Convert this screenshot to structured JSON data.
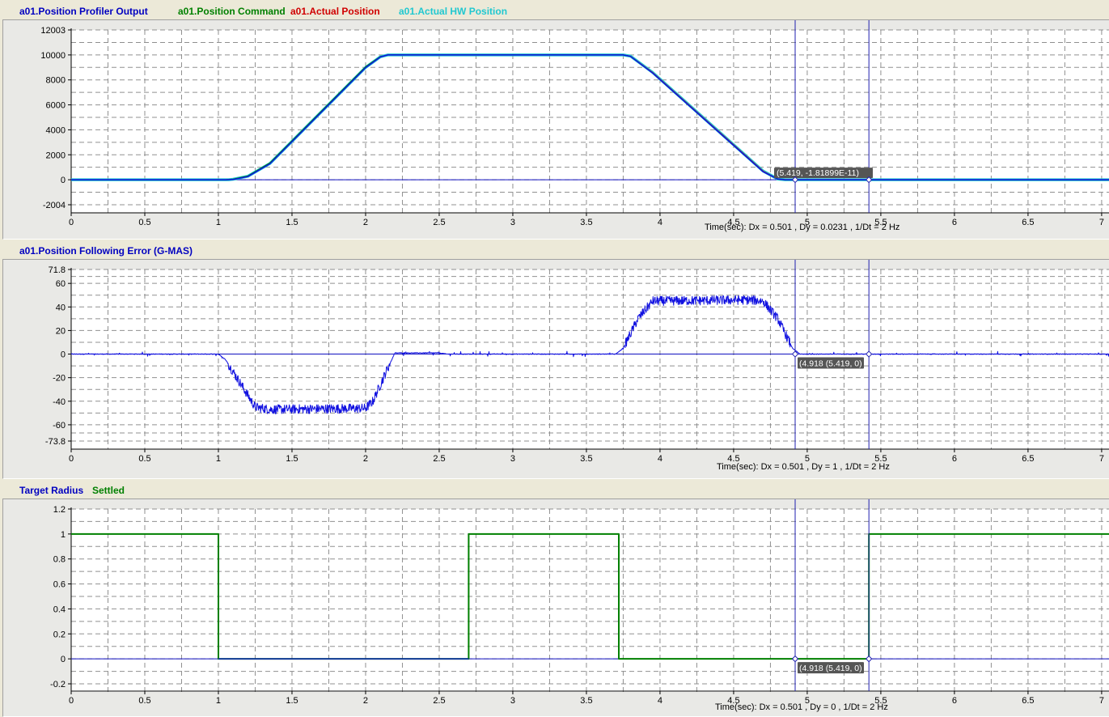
{
  "panels": [
    {
      "legend": [
        {
          "label": "a01.Position Profiler Output",
          "color": "#0000c0"
        },
        {
          "label": "a01.Position Command",
          "color": "#008000"
        },
        {
          "label": "a01.Actual Position",
          "color": "#d00000"
        },
        {
          "label": "a01.Actual HW Position",
          "color": "#20c8d0"
        }
      ],
      "info": "Time(sec): Dx = 0.501 , Dy = 0.0231 , 1/Dt = 2 Hz",
      "cursor_label": "(5.419, -1.81899E-11)",
      "cursor_label_extra": ""
    },
    {
      "legend": [
        {
          "label": "a01.Position Following Error (G-MAS)",
          "color": "#0000c0"
        }
      ],
      "info": "Time(sec): Dx = 0.501 , Dy = 1 , 1/Dt = 2 Hz",
      "cursor_label": "(4.918",
      "cursor_label_extra": "(5.419, 0)"
    },
    {
      "legend": [
        {
          "label": "Target Radius",
          "color": "#0000c0"
        },
        {
          "label": "Settled",
          "color": "#008000"
        }
      ],
      "info": "Time(sec): Dx = 0.501 , Dy = 0 , 1/Dt = 2 Hz",
      "cursor_label": "(4.918",
      "cursor_label_extra": "(5.419, 0)"
    }
  ],
  "chart_data": [
    {
      "type": "line",
      "title": "a01.Position Profiler Output",
      "xlabel": "Time(sec)",
      "ylabel": "",
      "xlim": [
        0,
        7.05
      ],
      "ylim": [
        -2004,
        12003
      ],
      "x_ticks": [
        "0",
        "0.5",
        "1",
        "1.5",
        "2",
        "2.5",
        "3",
        "3.5",
        "4",
        "4.5",
        "5",
        "5.5",
        "6",
        "6.5",
        "7"
      ],
      "y_ticks": [
        "12003",
        "10000",
        "8000",
        "6000",
        "4000",
        "2000",
        "0",
        "-2004"
      ],
      "y_tick_values": [
        12003,
        10000,
        8000,
        6000,
        4000,
        2000,
        0,
        -2004
      ],
      "cursors": [
        4.918,
        5.419
      ],
      "grid": true,
      "legend_position": "top-left",
      "series": [
        {
          "name": "a01.Actual HW Position",
          "color": "#20c8d0",
          "width": 3.5,
          "points": [
            [
              0,
              0
            ],
            [
              1.07,
              0
            ],
            [
              1.1,
              40
            ],
            [
              1.2,
              280
            ],
            [
              1.35,
              1300
            ],
            [
              2.0,
              9000
            ],
            [
              2.1,
              9850
            ],
            [
              2.15,
              10000
            ],
            [
              3.75,
              10000
            ],
            [
              3.8,
              9900
            ],
            [
              3.95,
              8600
            ],
            [
              4.7,
              700
            ],
            [
              4.8,
              60
            ],
            [
              4.85,
              0
            ],
            [
              7.05,
              0
            ]
          ]
        },
        {
          "name": "a01.Actual Position",
          "color": "#d00000",
          "width": 1,
          "points": [
            [
              0,
              0
            ],
            [
              1.06,
              0
            ],
            [
              1.1,
              40
            ],
            [
              1.2,
              280
            ],
            [
              1.35,
              1300
            ],
            [
              2.0,
              9000
            ],
            [
              2.1,
              9850
            ],
            [
              2.15,
              10000
            ],
            [
              3.75,
              10000
            ],
            [
              3.8,
              9900
            ],
            [
              3.95,
              8600
            ],
            [
              4.7,
              700
            ],
            [
              4.8,
              60
            ],
            [
              4.85,
              0
            ],
            [
              7.05,
              0
            ]
          ]
        },
        {
          "name": "a01.Position Command",
          "color": "#008000",
          "width": 1.2,
          "points": [
            [
              0,
              0
            ],
            [
              1.05,
              0
            ],
            [
              1.1,
              50
            ],
            [
              1.2,
              300
            ],
            [
              1.35,
              1350
            ],
            [
              2.0,
              9050
            ],
            [
              2.1,
              9870
            ],
            [
              2.15,
              10000
            ],
            [
              3.75,
              10000
            ],
            [
              3.8,
              9880
            ],
            [
              3.95,
              8550
            ],
            [
              4.7,
              650
            ],
            [
              4.8,
              50
            ],
            [
              4.85,
              0
            ],
            [
              7.05,
              0
            ]
          ]
        },
        {
          "name": "a01.Position Profiler Output",
          "color": "#1010e0",
          "width": 1.5,
          "points": [
            [
              0,
              0
            ],
            [
              1.05,
              0
            ],
            [
              1.1,
              20
            ],
            [
              1.2,
              250
            ],
            [
              1.35,
              1280
            ],
            [
              2.0,
              8980
            ],
            [
              2.1,
              9840
            ],
            [
              2.15,
              10000
            ],
            [
              3.75,
              10000
            ],
            [
              3.8,
              9880
            ],
            [
              3.95,
              8550
            ],
            [
              4.7,
              650
            ],
            [
              4.8,
              50
            ],
            [
              4.85,
              0
            ],
            [
              7.05,
              0
            ]
          ]
        }
      ]
    },
    {
      "type": "line",
      "title": "a01.Position Following Error (G-MAS)",
      "xlabel": "Time(sec)",
      "ylabel": "",
      "xlim": [
        0,
        7.05
      ],
      "ylim": [
        -73.8,
        71.8
      ],
      "x_ticks": [
        "0",
        "0.5",
        "1",
        "1.5",
        "2",
        "2.5",
        "3",
        "3.5",
        "4",
        "4.5",
        "5",
        "5.5",
        "6",
        "6.5",
        "7"
      ],
      "y_ticks": [
        "71.8",
        "60",
        "40",
        "20",
        "0",
        "-20",
        "-40",
        "-60",
        "-73.8"
      ],
      "y_tick_values": [
        71.8,
        60,
        40,
        20,
        0,
        -20,
        -40,
        -60,
        -73.8
      ],
      "cursors": [
        4.918,
        5.419
      ],
      "grid": true,
      "legend_position": "top-left",
      "noise_amplitude": 4,
      "series": [
        {
          "name": "a01.Position Following Error (G-MAS)",
          "color": "#1010e0",
          "width": 1,
          "points": [
            [
              0,
              0
            ],
            [
              1.0,
              0
            ],
            [
              1.05,
              -5
            ],
            [
              1.15,
              -25
            ],
            [
              1.25,
              -45
            ],
            [
              1.35,
              -47
            ],
            [
              2.0,
              -46
            ],
            [
              2.05,
              -40
            ],
            [
              2.15,
              -12
            ],
            [
              2.2,
              1
            ],
            [
              2.5,
              1
            ],
            [
              2.55,
              0
            ],
            [
              3.7,
              0
            ],
            [
              3.75,
              5
            ],
            [
              3.85,
              30
            ],
            [
              3.95,
              45
            ],
            [
              4.6,
              46
            ],
            [
              4.7,
              45
            ],
            [
              4.8,
              30
            ],
            [
              4.9,
              5
            ],
            [
              4.95,
              0
            ],
            [
              7.05,
              0
            ]
          ]
        }
      ]
    },
    {
      "type": "line",
      "title": "",
      "xlabel": "Time(sec)",
      "ylabel": "",
      "xlim": [
        0,
        7.05
      ],
      "ylim": [
        -0.2,
        1.2
      ],
      "x_ticks": [
        "0",
        "0.5",
        "1",
        "1.5",
        "2",
        "2.5",
        "3",
        "3.5",
        "4",
        "4.5",
        "5",
        "5.5",
        "6",
        "6.5",
        "7"
      ],
      "y_ticks": [
        "1.2",
        "1",
        "0.8",
        "0.6",
        "0.4",
        "0.2",
        "0",
        "-0.2"
      ],
      "y_tick_values": [
        1.2,
        1,
        0.8,
        0.6,
        0.4,
        0.2,
        0,
        -0.2
      ],
      "cursors": [
        4.918,
        5.419
      ],
      "grid": true,
      "legend_position": "top-left",
      "series": [
        {
          "name": "Settled",
          "color": "#008000",
          "width": 2,
          "points": [
            [
              0,
              1
            ],
            [
              1.0,
              1
            ],
            [
              1.0,
              0
            ],
            [
              2.7,
              0
            ],
            [
              2.7,
              1
            ],
            [
              3.72,
              1
            ],
            [
              3.72,
              0
            ],
            [
              5.419,
              0
            ],
            [
              5.419,
              1
            ],
            [
              7.05,
              1
            ]
          ]
        },
        {
          "name": "Target Radius",
          "color": "#1010e0",
          "width": 1.2,
          "points": [
            [
              1.0,
              0
            ],
            [
              2.7,
              0
            ]
          ]
        }
      ]
    }
  ]
}
